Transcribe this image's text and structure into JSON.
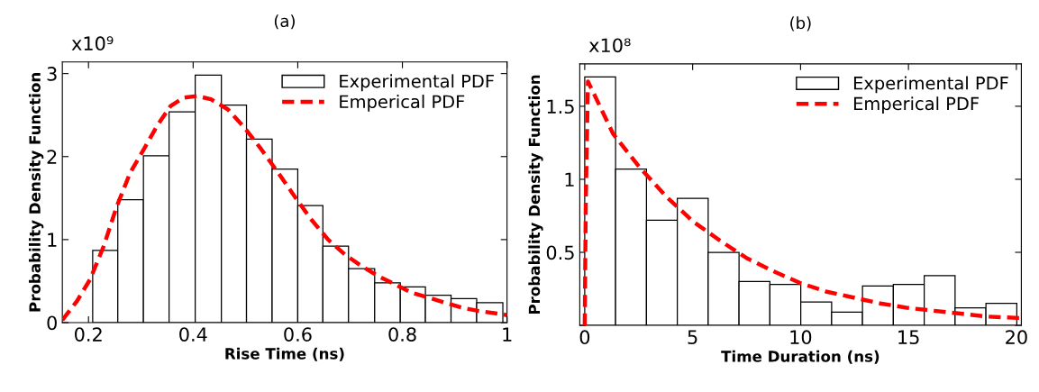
{
  "chart_data": [
    {
      "type": "histogram",
      "title": "(a)",
      "xlabel": "Rise Time (ns)",
      "ylabel": "Probability Density Function",
      "annotations": [
        "x10⁹"
      ],
      "xlim": [
        0.15,
        1
      ],
      "xticks": [
        0.2,
        0.4,
        0.6,
        0.8,
        1
      ],
      "ylim": [
        0,
        3.14
      ],
      "yticks": [
        0,
        1,
        2,
        3
      ],
      "legend": "top right",
      "grid": false,
      "series": [
        {
          "name": "Experimental PDF",
          "color": "#ffffff",
          "bins": [
            0.208,
            0.256,
            0.305,
            0.354,
            0.404,
            0.454,
            0.502,
            0.551,
            0.6,
            0.648,
            0.697,
            0.747,
            0.796,
            0.844,
            0.893,
            0.942,
            0.992
          ],
          "values": [
            0.87,
            1.48,
            2.01,
            2.54,
            2.98,
            2.62,
            2.21,
            1.85,
            1.41,
            0.92,
            0.65,
            0.48,
            0.43,
            0.33,
            0.29,
            0.24
          ]
        },
        {
          "name": "Emperical PDF",
          "type": "line",
          "color": "#ff0000",
          "line_style": "dashed",
          "x": [
            0.15,
            0.178,
            0.203,
            0.229,
            0.254,
            0.28,
            0.306,
            0.331,
            0.357,
            0.382,
            0.408,
            0.434,
            0.466,
            0.498,
            0.53,
            0.562,
            0.594,
            0.626,
            0.658,
            0.69,
            0.722,
            0.754,
            0.786,
            0.818,
            0.85,
            0.882,
            0.914,
            0.946,
            0.991,
            1.0
          ],
          "values": [
            0.03,
            0.26,
            0.52,
            0.92,
            1.4,
            1.81,
            2.09,
            2.37,
            2.61,
            2.71,
            2.73,
            2.69,
            2.57,
            2.35,
            2.09,
            1.81,
            1.52,
            1.24,
            1.0,
            0.82,
            0.68,
            0.56,
            0.46,
            0.36,
            0.3,
            0.24,
            0.18,
            0.14,
            0.1,
            0.09
          ]
        }
      ]
    },
    {
      "type": "histogram",
      "title": "(b)",
      "xlabel": "Time Duration (ns)",
      "ylabel": "Probability Density Function",
      "annotations": [
        "x10⁸"
      ],
      "xlim": [
        -0.23,
        20.23
      ],
      "xticks": [
        0,
        5,
        10,
        15,
        20
      ],
      "ylim": [
        0,
        1.79
      ],
      "yticks": [
        {
          "value": 0,
          "label": null
        },
        0.5,
        1,
        1.5
      ],
      "legend": "top right",
      "grid": false,
      "series": [
        {
          "name": "Experimental PDF",
          "color": "#ffffff",
          "bins": [
            0,
            1.43,
            2.86,
            4.29,
            5.72,
            7.15,
            8.58,
            10.01,
            11.44,
            12.87,
            14.3,
            15.73,
            17.16,
            18.59,
            20.02
          ],
          "values": [
            1.7,
            1.07,
            0.72,
            0.87,
            0.5,
            0.3,
            0.28,
            0.16,
            0.09,
            0.27,
            0.28,
            0.34,
            0.12,
            0.15
          ]
        },
        {
          "name": "Emperical PDF",
          "type": "line",
          "color": "#ff0000",
          "line_style": "dashed",
          "x": [
            0,
            0.05,
            0.15,
            1.32,
            2.55,
            3.79,
            5.03,
            6.27,
            7.51,
            8.75,
            9.98,
            11.22,
            12.46,
            13.7,
            14.94,
            16.18,
            17.41,
            18.65,
            20.2
          ],
          "values": [
            0,
            0.85,
            1.67,
            1.31,
            1.08,
            0.88,
            0.71,
            0.58,
            0.46,
            0.37,
            0.29,
            0.23,
            0.19,
            0.15,
            0.12,
            0.1,
            0.08,
            0.06,
            0.05
          ]
        }
      ]
    }
  ]
}
